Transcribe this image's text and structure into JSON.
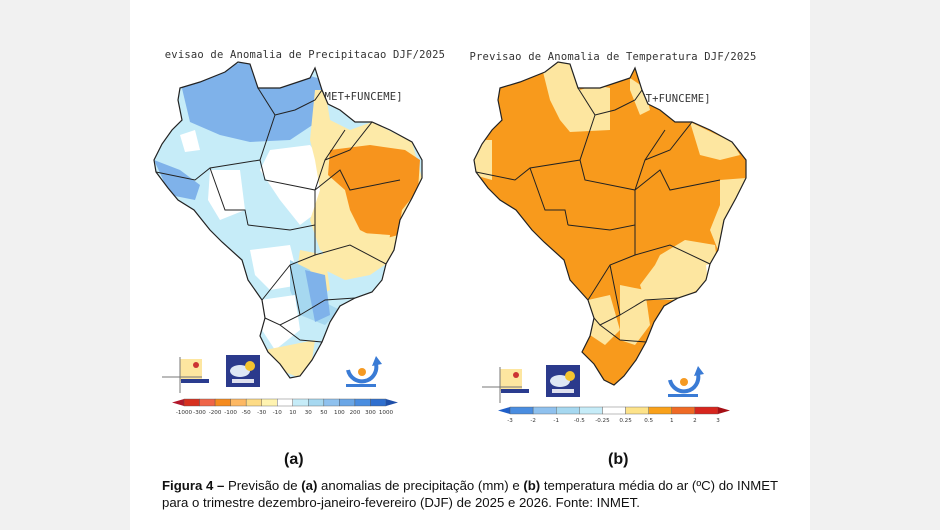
{
  "figure": {
    "panel_a": {
      "label": "(a)",
      "title_line1": "evisao de Anomalia de Precipitacao DJF/2025",
      "title_line2": "media [CPTEC1.2+INMET+FUNCEME]",
      "colorbar": {
        "ticks": [
          "-1000",
          "-300",
          "-200",
          "-100",
          "-50",
          "-30",
          "-10",
          "10",
          "30",
          "50",
          "100",
          "200",
          "300",
          "1000"
        ],
        "colors": [
          "#b2182b",
          "#d7301f",
          "#ef6548",
          "#f58b1f",
          "#fdb863",
          "#fddb85",
          "#fff3b0",
          "#ffffff",
          "#c6ecf8",
          "#a6d8f0",
          "#8fc1ee",
          "#6aa6e6",
          "#4a8de0",
          "#2f6fcf",
          "#1f4fa8"
        ]
      },
      "logos": [
        "FUNCEME",
        "INMET",
        "CPTEC"
      ]
    },
    "panel_b": {
      "label": "(b)",
      "title_line1": "Previsao de Anomalia de Temperatura DJF/2025",
      "title_line2": "media [CPTEC1.2+INMET+FUNCEME]",
      "colorbar": {
        "ticks": [
          "-3",
          "-2",
          "-1",
          "-0.5",
          "-0.25",
          "0.25",
          "0.5",
          "1",
          "2",
          "3"
        ],
        "colors": [
          "#1f5fc8",
          "#4a8de0",
          "#8fc1ee",
          "#a6d8f0",
          "#c6ecf8",
          "#ffffff",
          "#fde38a",
          "#f9a11b",
          "#ef6a25",
          "#d7261e",
          "#a50f15"
        ]
      },
      "logos": [
        "FUNCEME",
        "INMET",
        "CPTEC"
      ]
    },
    "caption": {
      "prefix_bold": "Figura 4 –",
      "part1": " Previsão de ",
      "a_bold": "(a)",
      "part2": " anomalias de precipitação (mm) e ",
      "b_bold": "(b)",
      "part3": " temperatura média do ar (ºC) do INMET para o trimestre dezembro-janeiro-fevereiro (DJF) de 2025 e 2026. Fonte: INMET."
    }
  },
  "colors": {
    "page_bg": "#ffffff",
    "viewer_bg": "#f1f1f1",
    "temp_orange": "#f89a1c",
    "temp_light": "#fde6a0",
    "precip_blue": "#7fb2ea",
    "precip_lightblue": "#c6ecf8",
    "precip_orange": "#f7941d",
    "precip_yellow": "#fdeaa8"
  }
}
